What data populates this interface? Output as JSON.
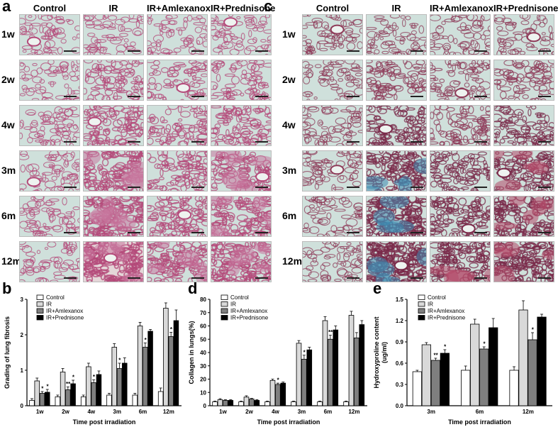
{
  "panels": {
    "a": {
      "letter": "a",
      "columns": [
        "Control",
        "IR",
        "IR+Amlexanox",
        "IR+Prednisone"
      ],
      "rows": [
        "1w",
        "2w",
        "4w",
        "3m",
        "6m",
        "12m"
      ]
    },
    "c": {
      "letter": "c",
      "columns": [
        "Control",
        "IR",
        "IR+Amlexanox",
        "IR+Prednisone"
      ],
      "rows": [
        "1w",
        "2w",
        "4w",
        "3m",
        "6m",
        "12m"
      ]
    },
    "b_letter": "b",
    "d_letter": "d",
    "e_letter": "e"
  },
  "colors": {
    "Control": "#ffffff",
    "IR": "#d9d9d9",
    "IR+Amlexanox": "#7f7f7f",
    "IR+Prednisone": "#000000",
    "he_stain_bg": "#cfe0db",
    "he_stain_tissue": "#b44a7a",
    "masson_collagen": "#3e8ab0"
  },
  "chart_data": [
    {
      "id": "b",
      "type": "bar",
      "categories": [
        "1w",
        "2w",
        "4w",
        "3m",
        "6m",
        "12m"
      ],
      "series": [
        {
          "name": "Control",
          "values": [
            0.15,
            0.25,
            0.25,
            0.3,
            0.3,
            0.4
          ],
          "err": [
            0.05,
            0.05,
            0.05,
            0.05,
            0.05,
            0.1
          ]
        },
        {
          "name": "IR",
          "values": [
            0.7,
            0.95,
            1.1,
            1.65,
            2.25,
            2.75
          ],
          "err": [
            0.08,
            0.1,
            0.1,
            0.1,
            0.1,
            0.15
          ]
        },
        {
          "name": "IR+Amlexanox",
          "values": [
            0.35,
            0.45,
            0.65,
            1.05,
            1.65,
            1.95
          ],
          "err": [
            0.05,
            0.08,
            0.08,
            0.15,
            0.12,
            0.12
          ]
        },
        {
          "name": "IR+Prednisone",
          "values": [
            0.38,
            0.62,
            0.88,
            1.2,
            2.1,
            2.4
          ],
          "err": [
            0.08,
            0.1,
            0.1,
            0.15,
            0.05,
            0.3
          ]
        }
      ],
      "annotations": [
        {
          "category": "1w",
          "series": "IR+Amlexanox",
          "text": "*"
        },
        {
          "category": "1w",
          "series": "IR+Prednisone",
          "text": "*"
        },
        {
          "category": "2w",
          "series": "IR+Amlexanox",
          "text": "**"
        },
        {
          "category": "2w",
          "series": "IR+Prednisone",
          "text": "*"
        },
        {
          "category": "4w",
          "series": "IR+Amlexanox",
          "text": "*"
        },
        {
          "category": "3m",
          "series": "IR+Amlexanox",
          "text": "*"
        },
        {
          "category": "6m",
          "series": "IR+Amlexanox",
          "text": "*"
        },
        {
          "category": "12m",
          "series": "IR+Amlexanox",
          "text": "*"
        }
      ],
      "xlabel": "Time post irradiation",
      "ylabel": "Grading of lung fibrosis",
      "ylim": [
        0,
        3
      ],
      "yticks": [
        0,
        1,
        2,
        3
      ],
      "legend": "top-center"
    },
    {
      "id": "d",
      "type": "bar",
      "categories": [
        "1w",
        "2w",
        "4w",
        "3m",
        "6m",
        "12m"
      ],
      "series": [
        {
          "name": "Control",
          "values": [
            3,
            3,
            3,
            3,
            3,
            3
          ],
          "err": [
            0.5,
            0.5,
            0.5,
            0.5,
            0.5,
            0.5
          ]
        },
        {
          "name": "IR",
          "values": [
            4.5,
            6.5,
            19,
            47,
            64,
            68
          ],
          "err": [
            0.8,
            1,
            1,
            2,
            3,
            3
          ]
        },
        {
          "name": "IR+Amlexanox",
          "values": [
            4,
            5,
            16,
            35,
            50,
            51
          ],
          "err": [
            0.5,
            0.5,
            1,
            3,
            3,
            4
          ]
        },
        {
          "name": "IR+Prednisone",
          "values": [
            4,
            4,
            17,
            42,
            57,
            61
          ],
          "err": [
            0.5,
            0.5,
            0.8,
            2,
            3,
            3
          ]
        }
      ],
      "annotations": [
        {
          "category": "4w",
          "series": "IR+Amlexanox",
          "text": "*"
        },
        {
          "category": "3m",
          "series": "IR+Amlexanox",
          "text": "*"
        },
        {
          "category": "6m",
          "series": "IR+Amlexanox",
          "text": "**"
        }
      ],
      "xlabel": "Time post irradiation",
      "ylabel": "Collagen in lungs(%)",
      "ylim": [
        0,
        80
      ],
      "yticks": [
        0,
        10,
        20,
        30,
        40,
        50,
        60,
        70,
        80
      ],
      "legend": "top-center"
    },
    {
      "id": "e",
      "type": "bar",
      "categories": [
        "3m",
        "6m",
        "12m"
      ],
      "series": [
        {
          "name": "Control",
          "values": [
            0.48,
            0.5,
            0.5
          ],
          "err": [
            0.02,
            0.06,
            0.05
          ]
        },
        {
          "name": "IR",
          "values": [
            0.86,
            1.15,
            1.35
          ],
          "err": [
            0.03,
            0.07,
            0.13
          ]
        },
        {
          "name": "IR+Amlexanox",
          "values": [
            0.64,
            0.8,
            0.93
          ],
          "err": [
            0.03,
            0.03,
            0.1
          ]
        },
        {
          "name": "IR+Prednisone",
          "values": [
            0.74,
            1.1,
            1.25
          ],
          "err": [
            0.05,
            0.13,
            0.04
          ]
        }
      ],
      "annotations": [
        {
          "category": "3m",
          "series": "IR+Amlexanox",
          "text": "**"
        },
        {
          "category": "3m",
          "series": "IR+Prednisone",
          "text": "*"
        },
        {
          "category": "6m",
          "series": "IR+Amlexanox",
          "text": "*"
        },
        {
          "category": "12m",
          "series": "IR+Amlexanox",
          "text": "*"
        }
      ],
      "xlabel": "Time post irradiation",
      "ylabel": "Hydroxyproline content\n(ug/ml)",
      "ylabel_lines": [
        "Hydroxyproline content",
        "(ug/ml)"
      ],
      "ylim": [
        0,
        1.5
      ],
      "yticks": [
        "0.0",
        "0.3",
        "0.6",
        "0.9",
        "1.2",
        "1.5"
      ],
      "legend": "top-center"
    }
  ]
}
